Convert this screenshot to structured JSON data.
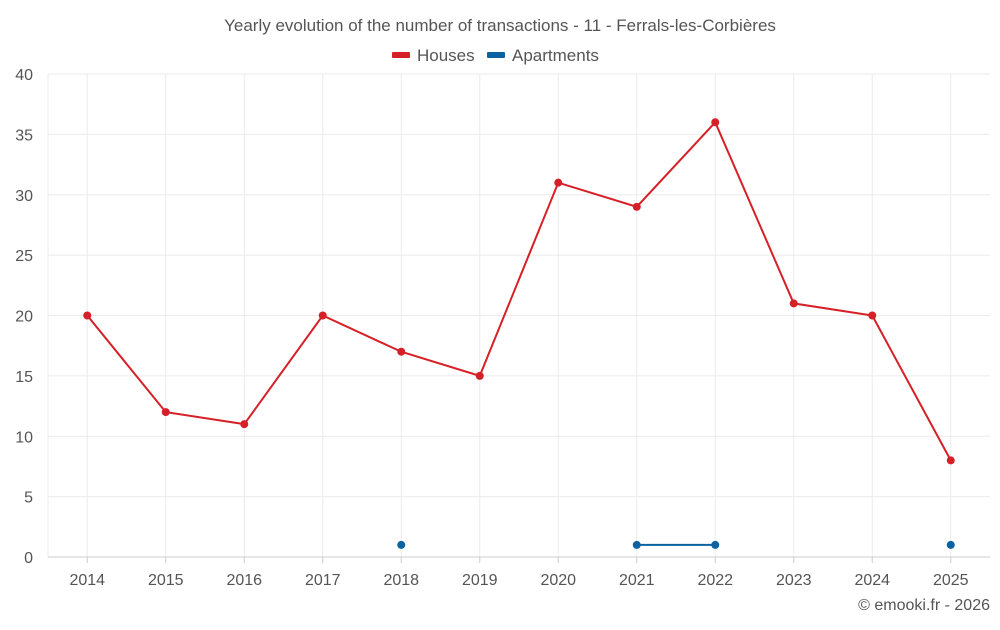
{
  "chart_data": {
    "type": "line",
    "title": "Yearly evolution of the number of transactions - 11 - Ferrals-les-Corbières",
    "categories": [
      "2014",
      "2015",
      "2016",
      "2017",
      "2018",
      "2019",
      "2020",
      "2021",
      "2022",
      "2023",
      "2024",
      "2025"
    ],
    "ylim": [
      0,
      40
    ],
    "yticks": [
      0,
      5,
      10,
      15,
      20,
      25,
      30,
      35,
      40
    ],
    "grid": true,
    "legend_position": "top-center",
    "series": [
      {
        "name": "Houses",
        "color": "#d62027",
        "values": [
          20,
          12,
          11,
          20,
          17,
          15,
          31,
          29,
          36,
          21,
          20,
          8
        ]
      },
      {
        "name": "Apartments",
        "color": "#0a62a0",
        "values": [
          null,
          null,
          null,
          null,
          1,
          null,
          null,
          1,
          1,
          null,
          null,
          1
        ]
      }
    ],
    "credit": "© emooki.fr - 2026"
  }
}
